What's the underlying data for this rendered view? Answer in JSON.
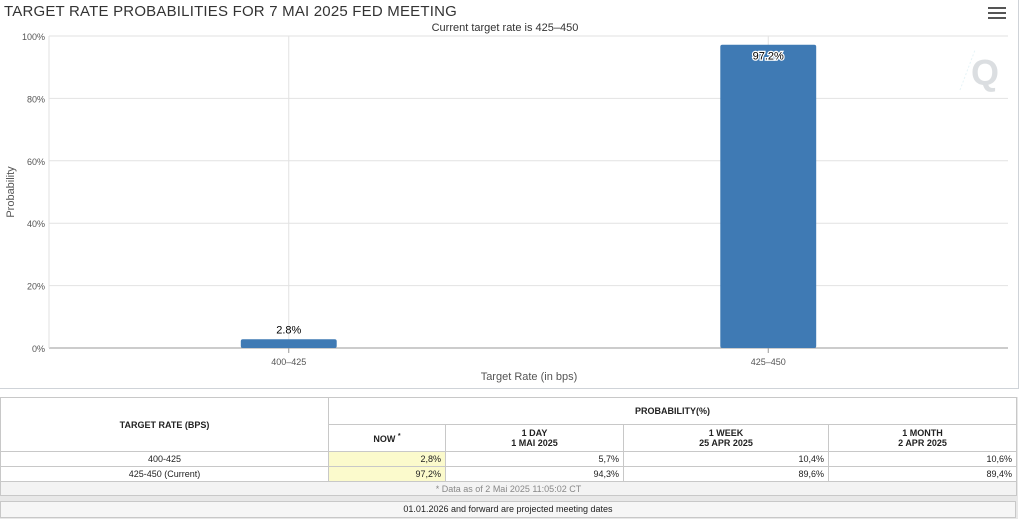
{
  "page": {
    "title": "TARGET RATE PROBABILITIES FOR 7 MAI 2025 FED MEETING",
    "menu_icon": "hamburger-menu-icon"
  },
  "chart_data": {
    "type": "bar",
    "title": "TARGET RATE PROBABILITIES FOR 7 MAI 2025 FED MEETING",
    "subtitle": "Current target rate is 425–450",
    "categories": [
      "400–425",
      "425–450"
    ],
    "values": [
      2.8,
      97.2
    ],
    "data_labels": [
      "2.8%",
      "97.2%"
    ],
    "xlabel": "Target Rate (in bps)",
    "ylabel": "Probability",
    "ylim": [
      0,
      100
    ],
    "yticks": [
      0,
      20,
      40,
      60,
      80,
      100
    ],
    "ytick_labels": [
      "0%",
      "20%",
      "40%",
      "60%",
      "80%",
      "100%"
    ],
    "grid": true,
    "bar_color": "#3f7ab4"
  },
  "table": {
    "header_rate": "TARGET RATE (BPS)",
    "header_prob": "PROBABILITY(%)",
    "col_now": "NOW",
    "col_now_mark": "*",
    "cols": [
      {
        "line1": "1 DAY",
        "line2": "1 MAI 2025"
      },
      {
        "line1": "1 WEEK",
        "line2": "25 APR 2025"
      },
      {
        "line1": "1 MONTH",
        "line2": "2 APR 2025"
      }
    ],
    "rows": [
      {
        "rate": "400-425",
        "now": "2,8%",
        "day": "5,7%",
        "week": "10,4%",
        "month": "10,6%"
      },
      {
        "rate": "425-450 (Current)",
        "now": "97,2%",
        "day": "94,3%",
        "week": "89,6%",
        "month": "89,4%"
      }
    ],
    "note": "* Data as of 2 Mai 2025 11:05:02 CT",
    "footer": "01.01.2026 and forward are projected meeting dates"
  },
  "colors": {
    "bar": "#3f7ab4",
    "now_cell": "#fbfacc"
  }
}
